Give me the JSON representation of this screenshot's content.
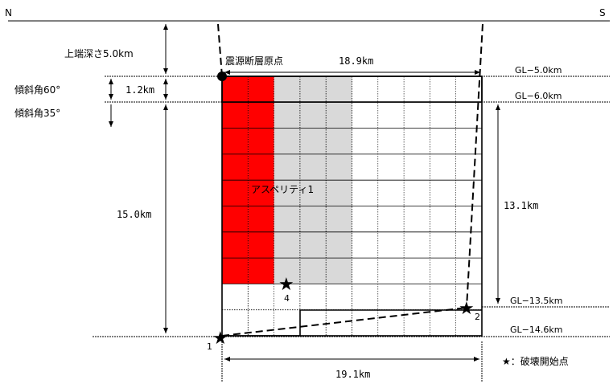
{
  "compass": {
    "left": "N",
    "right": "S"
  },
  "labels": {
    "top_depth": "上端深さ5.0km",
    "dip60": "傾斜角60°",
    "dip35": "傾斜角35°",
    "origin": "震源断層原点",
    "asperity": "アスペリティ1",
    "legend": "★：破壊開始点"
  },
  "dimensions": {
    "width_top": "18.9km",
    "width_bottom": "19.1km",
    "height_short": "1.2km",
    "height_total": "15.0km",
    "height_right": "13.1km"
  },
  "depth_levels": [
    "GL−5.0km",
    "GL−6.0km",
    "GL−13.5km",
    "GL−14.6km"
  ],
  "start_points": [
    "1",
    "2",
    "4"
  ],
  "colors": {
    "asperity_strong": "#ff0000",
    "asperity_weak": "#d9d9d9",
    "grid": "#000000"
  }
}
